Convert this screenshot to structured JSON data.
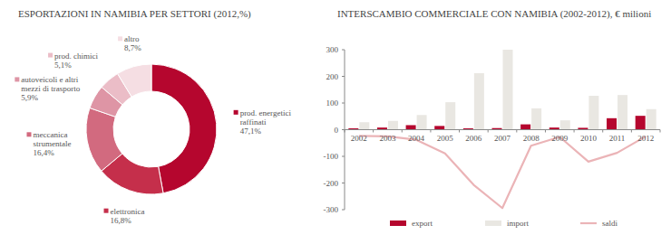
{
  "chart_data": [
    {
      "type": "pie",
      "title": "ESPORTAZIONI IN NAMIBIA PER SETTORI (2012,%)",
      "categories": [
        "prod. energetici raffinati",
        "elettronica",
        "meccanica strumentale",
        "autoveicoli e altri mezzi di trasporto",
        "prod. chimici",
        "altro"
      ],
      "values": [
        47.1,
        16.8,
        16.4,
        5.9,
        5.1,
        8.7
      ],
      "value_labels": [
        "47,1%",
        "16,8%",
        "16,4%",
        "5,9%",
        "5,1%",
        "8,7%"
      ],
      "colors": [
        "#b5062e",
        "#c52f4b",
        "#d26a7f",
        "#de95a5",
        "#ebbdc7",
        "#f5dee3"
      ],
      "data_labels": true
    },
    {
      "type": "bar",
      "title": "INTERSCAMBIO COMMERCIALE CON NAMIBIA (2002-2012), € milioni",
      "categories": [
        "2002",
        "2003",
        "2004",
        "2005",
        "2006",
        "2007",
        "2008",
        "2009",
        "2010",
        "2011",
        "2012"
      ],
      "series": [
        {
          "name": "export",
          "type": "bar",
          "color": "#b5062e",
          "values": [
            5,
            8,
            17,
            14,
            5,
            6,
            20,
            8,
            7,
            43,
            52
          ]
        },
        {
          "name": "import",
          "type": "bar",
          "color": "#e9e7e2",
          "values": [
            28,
            33,
            55,
            103,
            212,
            300,
            80,
            35,
            127,
            130,
            77
          ]
        },
        {
          "name": "saldi",
          "type": "line",
          "color": "#ebb4b7",
          "values": [
            -23,
            -25,
            -38,
            -89,
            -207,
            -294,
            -60,
            -27,
            -120,
            -87,
            -25
          ]
        }
      ],
      "ylim": [
        -300,
        300
      ],
      "yticks": [
        -300,
        -200,
        -100,
        0,
        100,
        200,
        300
      ],
      "grid": false,
      "legend": "bottom"
    }
  ]
}
